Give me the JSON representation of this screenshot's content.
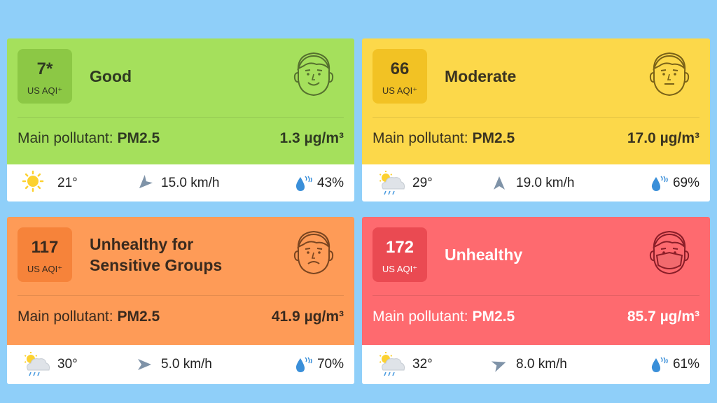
{
  "cards": [
    {
      "aqi": "7*",
      "aqi_label": "US AQI⁺",
      "status": "Good",
      "pollutant_label": "Main pollutant:",
      "pollutant": "PM2.5",
      "concentration": "1.3 µg/m³",
      "temperature": "21°",
      "wind": "15.0 km/h",
      "humidity": "43%"
    },
    {
      "aqi": "66",
      "aqi_label": "US AQI⁺",
      "status": "Moderate",
      "pollutant_label": "Main pollutant:",
      "pollutant": "PM2.5",
      "concentration": "17.0 µg/m³",
      "temperature": "29°",
      "wind": "19.0 km/h",
      "humidity": "69%"
    },
    {
      "aqi": "117",
      "aqi_label": "US AQI⁺",
      "status": "Unhealthy for Sensitive Groups",
      "pollutant_label": "Main pollutant:",
      "pollutant": "PM2.5",
      "concentration": "41.9 µg/m³",
      "temperature": "30°",
      "wind": "5.0 km/h",
      "humidity": "70%"
    },
    {
      "aqi": "172",
      "aqi_label": "US AQI⁺",
      "status": "Unhealthy",
      "pollutant_label": "Main pollutant:",
      "pollutant": "PM2.5",
      "concentration": "85.7 µg/m³",
      "temperature": "32°",
      "wind": "8.0 km/h",
      "humidity": "61%"
    }
  ]
}
